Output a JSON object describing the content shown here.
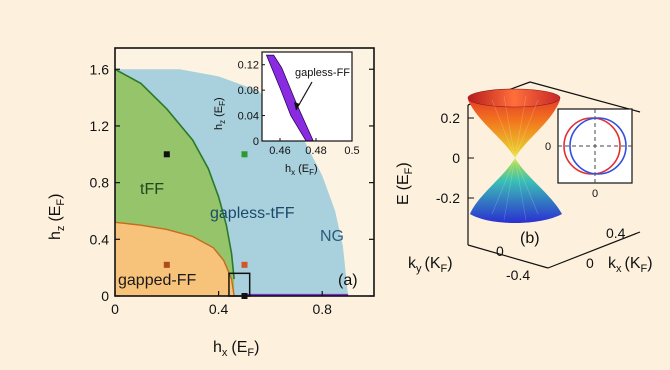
{
  "chart_data": [
    {
      "panel": "(a)",
      "type": "area",
      "xlabel": "h",
      "xlabel_sub": "x",
      "xlabel_unit": "(E",
      "xlabel_unit_sub": "F",
      "xlabel_close": ")",
      "ylabel": "h",
      "ylabel_sub": "z",
      "ylabel_unit": "(E",
      "ylabel_unit_sub": "F",
      "ylabel_close": ")",
      "xlim": [
        0,
        1.0
      ],
      "ylim": [
        0,
        1.75
      ],
      "xticks": [
        "0",
        "0.4",
        "0.8"
      ],
      "xtick_values": [
        0,
        0.4,
        0.8
      ],
      "yticks": [
        "0",
        "0.4",
        "0.8",
        "1.2",
        "1.6"
      ],
      "ytick_values": [
        0,
        0.4,
        0.8,
        1.2,
        1.6
      ],
      "regions": [
        {
          "name": "gapped-FF",
          "color": "#f7c27a",
          "boundary": [
            [
              0,
              0.52
            ],
            [
              0.1,
              0.5
            ],
            [
              0.2,
              0.47
            ],
            [
              0.3,
              0.42
            ],
            [
              0.38,
              0.34
            ],
            [
              0.42,
              0.25
            ],
            [
              0.45,
              0.12
            ],
            [
              0.46,
              0.0
            ]
          ]
        },
        {
          "name": "tFF",
          "color": "#95c46a",
          "boundary": [
            [
              0,
              1.6
            ],
            [
              0.1,
              1.5
            ],
            [
              0.2,
              1.32
            ],
            [
              0.3,
              1.1
            ],
            [
              0.36,
              0.9
            ],
            [
              0.4,
              0.7
            ],
            [
              0.43,
              0.5
            ],
            [
              0.45,
              0.3
            ],
            [
              0.46,
              0.12
            ]
          ]
        },
        {
          "name": "gapless-tFF",
          "color": "#a9d0dd",
          "boundary": [
            [
              0,
              1.6
            ],
            [
              0.25,
              1.6
            ],
            [
              0.4,
              1.55
            ],
            [
              0.55,
              1.45
            ],
            [
              0.65,
              1.3
            ],
            [
              0.73,
              1.1
            ],
            [
              0.8,
              0.85
            ],
            [
              0.85,
              0.6
            ],
            [
              0.88,
              0.35
            ],
            [
              0.9,
              0.0
            ]
          ]
        },
        {
          "name": "NG",
          "color": "#fdf3e3",
          "boundary": []
        }
      ],
      "gapless_FF_line": {
        "x": [
          0.5,
          0.9
        ],
        "y": [
          0.0,
          0.0
        ],
        "color": "#7a2fd0"
      },
      "markers": [
        {
          "x": 0.2,
          "y": 1.0,
          "color": "#111111"
        },
        {
          "x": 0.5,
          "y": 1.0,
          "color": "#2e9a2e"
        },
        {
          "x": 0.2,
          "y": 0.22,
          "color": "#b04a1a"
        },
        {
          "x": 0.5,
          "y": 0.22,
          "color": "#d0552a"
        },
        {
          "x": 0.5,
          "y": 0.0,
          "color": "#111111"
        }
      ],
      "zoom_box": {
        "x": [
          0.44,
          0.52
        ],
        "y": [
          0.0,
          0.16
        ]
      },
      "labels": {
        "gapped_ff": "gapped-FF",
        "tff": "tFF",
        "gapless_tff": "gapless-tFF",
        "ng": "NG",
        "panel": "(a)"
      },
      "inset": {
        "type": "area",
        "xlabel": "h",
        "xlabel_sub": "x",
        "xlabel_unit": "(E",
        "xlabel_unit_sub": "F",
        "xlabel_close": ")",
        "ylabel": "h",
        "ylabel_sub": "z",
        "ylabel_unit": "(E",
        "ylabel_unit_sub": "F",
        "ylabel_close": ")",
        "xlim": [
          0.45,
          0.5
        ],
        "ylim": [
          0,
          0.14
        ],
        "xticks": [
          "0.46",
          "0.48",
          "0.5"
        ],
        "xtick_values": [
          0.46,
          0.48,
          0.5
        ],
        "yticks": [
          "0",
          "0.04",
          "0.08",
          "0.12"
        ],
        "ytick_values": [
          0,
          0.04,
          0.08,
          0.12
        ],
        "band": {
          "name": "gapless-FF",
          "color": "#8a2be2",
          "upper": [
            [
              0.4525,
              0.135
            ],
            [
              0.4605,
              0.08
            ],
            [
              0.466,
              0.04
            ],
            [
              0.4745,
              0.0
            ]
          ],
          "lower": [
            [
              0.4785,
              0.0
            ],
            [
              0.469,
              0.06
            ],
            [
              0.461,
              0.115
            ],
            [
              0.4565,
              0.135
            ]
          ]
        },
        "annotation": "gapless-FF"
      }
    },
    {
      "panel": "(b)",
      "type": "surface",
      "zlabel": "E",
      "zlabel_unit": "(E",
      "zlabel_unit_sub": "F",
      "zlabel_close": ")",
      "zticks": [
        "0.2",
        "0",
        "-0.2"
      ],
      "ztick_values": [
        0.2,
        0,
        -0.2
      ],
      "ylabel": "k",
      "ylabel_sub": "y",
      "ylabel_unit": "(K",
      "ylabel_unit_sub": "F",
      "ylabel_close": ")",
      "yticks": [
        "0",
        "-0.4"
      ],
      "xlabel": "k",
      "xlabel_sub": "x",
      "xlabel_unit": "(K",
      "xlabel_unit_sub": "F",
      "xlabel_close": ")",
      "xticks": [
        "0.4",
        "0"
      ],
      "panel_label": "(b)",
      "inset": {
        "type": "line",
        "xticks": [
          "0"
        ],
        "yticks": [
          "0"
        ],
        "circles": [
          {
            "color": "#e23030",
            "offset": 0.05
          },
          {
            "color": "#3050e0",
            "offset": -0.05
          }
        ]
      }
    }
  ]
}
